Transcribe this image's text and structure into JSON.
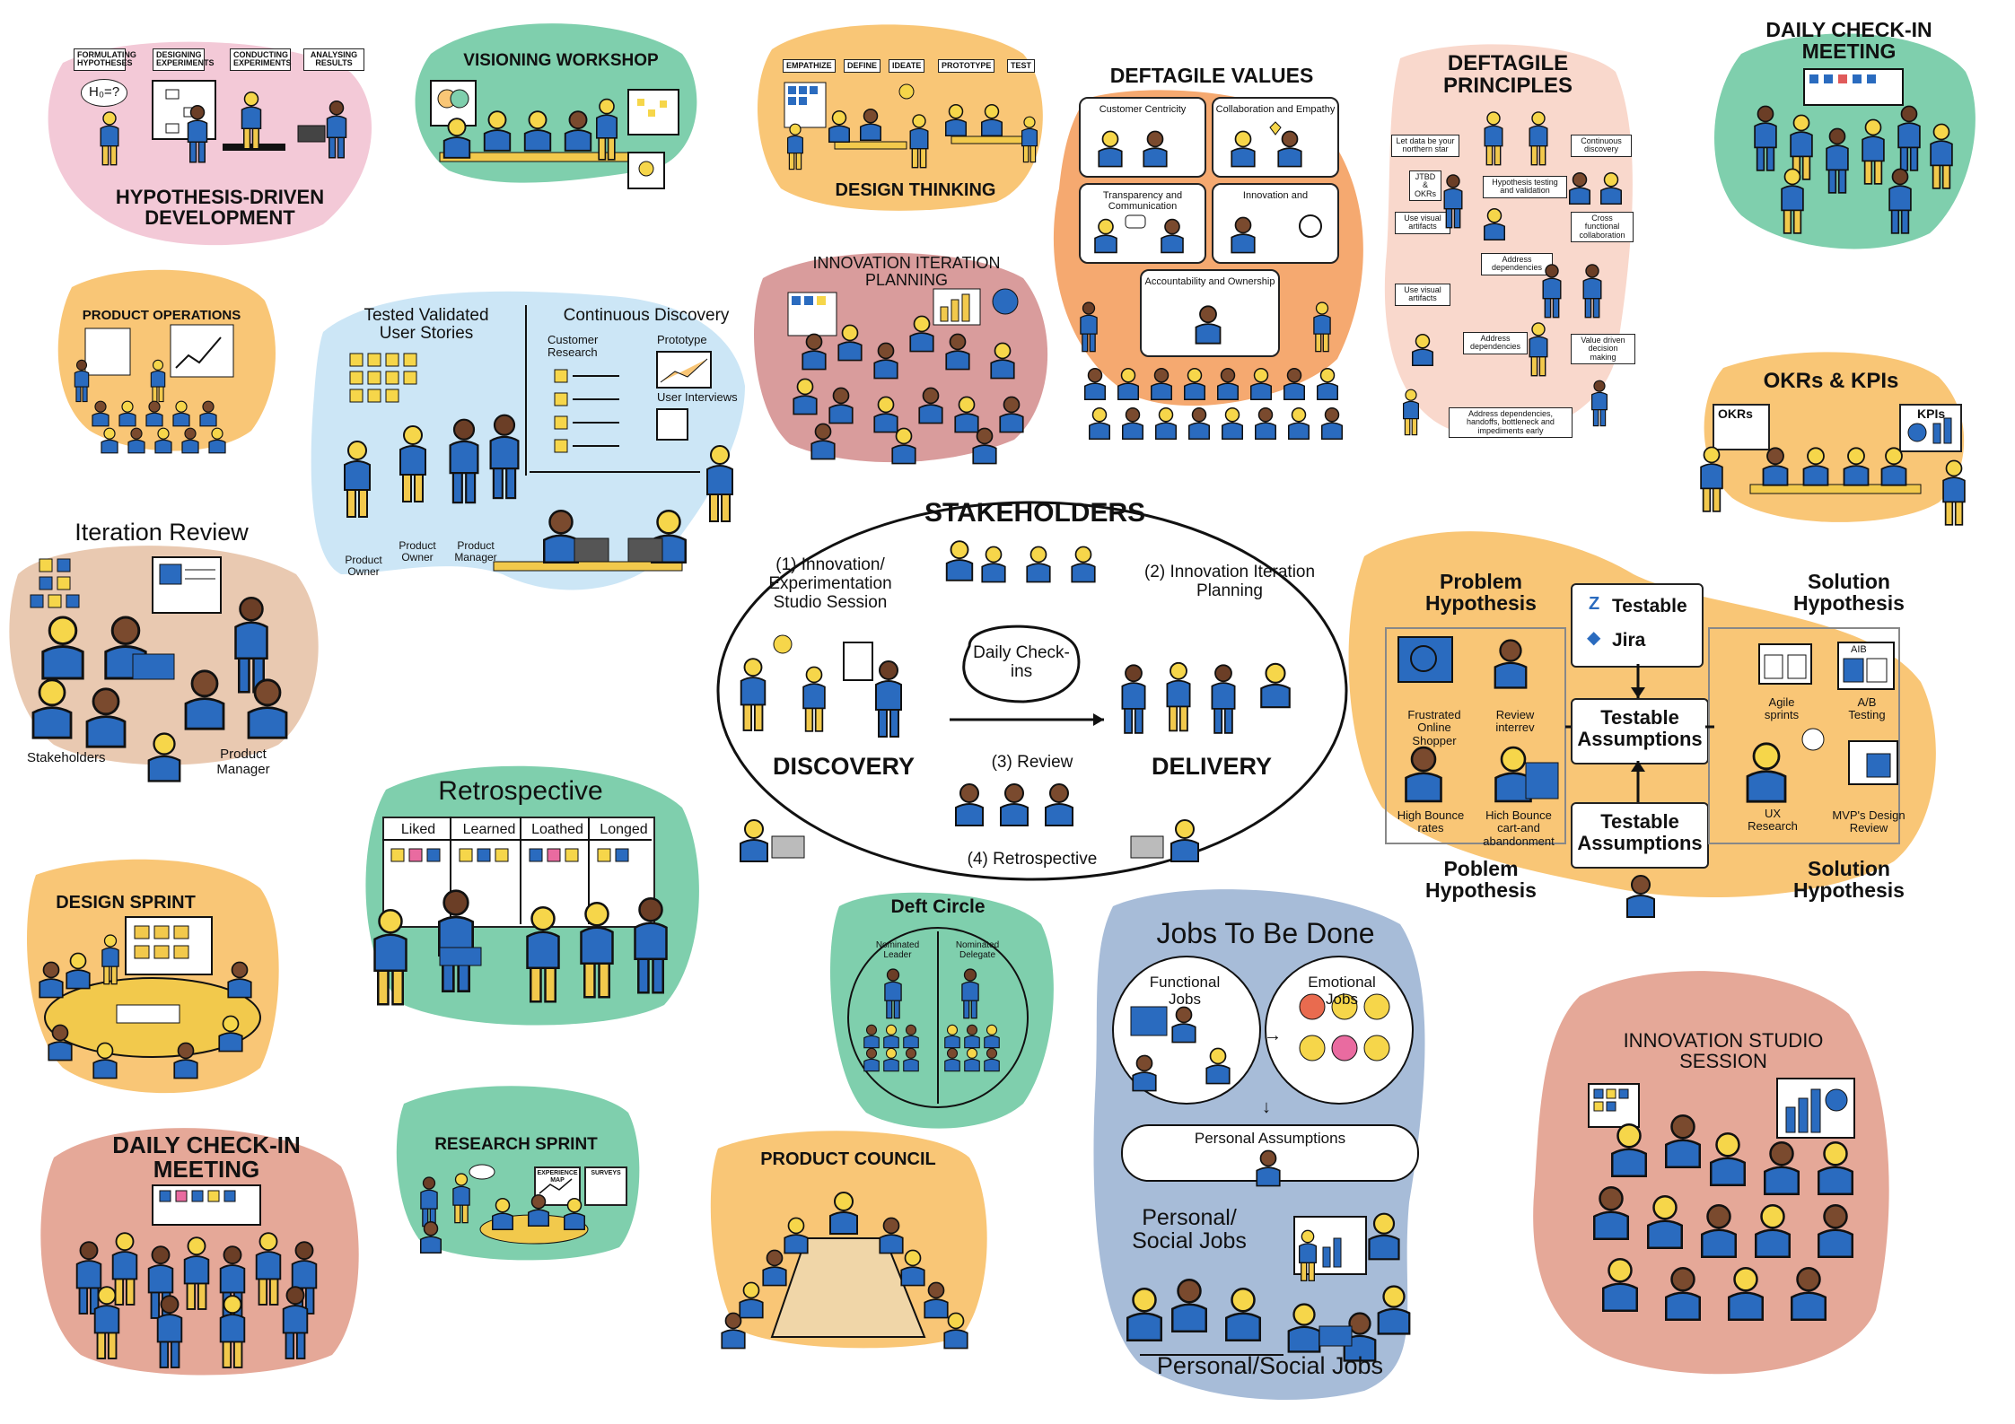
{
  "colors": {
    "pink": "#f3c9d7",
    "green": "#7fcfad",
    "orange": "#f9c676",
    "salmon": "#f5a970",
    "peach": "#f9d8cc",
    "lightblue": "#cce6f6",
    "rose": "#d99c9c",
    "tan": "#e9c9b1",
    "steel": "#a7bcd8",
    "shirt": "#2a6bbf",
    "skin": "#f6d64a",
    "pants": "#f2c94c",
    "ink": "#111111"
  },
  "hypothesis": {
    "title": "HYPOTHESIS-DRIVEN DEVELOPMENT",
    "steps": [
      "FORMULATING HYPOTHESES",
      "DESIGNING EXPERIMENTS",
      "CONDUCTING EXPERIMENTS",
      "ANALYSING RESULTS"
    ],
    "bubble": "H₀=?"
  },
  "visioning": {
    "title": "VISIONING WORKSHOP"
  },
  "design_thinking": {
    "title": "DESIGN THINKING",
    "stages": [
      "EMPATHIZE",
      "DEFINE",
      "IDEATE",
      "PROTOTYPE",
      "TEST"
    ]
  },
  "values": {
    "title": "DEFTAGILE VALUES",
    "items": [
      "Customer Centricity",
      "Collaboration and Empathy",
      "Transparency and Communication",
      "Innovation and",
      "Accountability and Ownership"
    ]
  },
  "principles": {
    "title": "DEFTAGILE PRINCIPLES",
    "items": [
      "Let data be your northern star",
      "JTBD & OKRs",
      "Hypothesis testing and validation",
      "Continuous discovery",
      "Use visual artifacts",
      "Cross functional collaboration",
      "Address dependencies",
      "Use visual artifacts",
      "Address dependencies",
      "Value driven decision making",
      "Address dependencies, handoffs, bottleneck and impediments early"
    ]
  },
  "daily_top": {
    "title": "DAILY CHECK-IN MEETING"
  },
  "product_ops": {
    "title": "PRODUCT OPERATIONS"
  },
  "validated": {
    "left_title": "Tested Validated User Stories",
    "right_title": "Continuous Discovery",
    "customer_research": "Customer Research",
    "prototype": "Prototype",
    "user_interviews": "User Interviews",
    "roles": [
      "Product Owner",
      "Product Owner",
      "Product Manager"
    ]
  },
  "iteration_planning": {
    "title": "INNOVATION ITERATION PLANNING"
  },
  "okrs": {
    "title": "OKRs & KPIs",
    "left": "OKRs",
    "right": "KPIs"
  },
  "iteration_review": {
    "title": "Iteration Review",
    "stakeholders": "Stakeholders",
    "product_manager": "Product Manager"
  },
  "center": {
    "title": "STAKEHOLDERS",
    "innovation": "(1) Innovation/ Experimentation Studio Session",
    "planning": "(2) Innovation Iteration Planning",
    "daily": "Daily Check-ins",
    "discovery": "DISCOVERY",
    "delivery": "DELIVERY",
    "review": "(3) Review",
    "retro": "(4) Retrospective"
  },
  "testable": {
    "problem_hypothesis": "Problem Hypothesis",
    "solution_hypothesis": "Solution Hypothesis",
    "testable": "Testable",
    "jira": "Jira",
    "assumptions": "Testable Assumptions",
    "frustrated": "Frustrated Online Shopper",
    "review_interview": "Review interrev",
    "high_bounce": "High Bounce rates",
    "hich_bounce": "Hich Bounce cart-and abandonment",
    "agile_sprints": "Agile sprints",
    "ab_testing": "A/B Testing",
    "ux_research": "UX Research",
    "mvp_review": "MVP's Design Review",
    "poblem_hypothesis": "Poblem Hypothesis",
    "ab_header": "AIB"
  },
  "design_sprint": {
    "title": "DESIGN SPRINT"
  },
  "retrospective": {
    "title": "Retrospective",
    "columns": [
      "Liked",
      "Learned",
      "Loathed",
      "Longed"
    ]
  },
  "deft_circle": {
    "title": "Deft Circle",
    "leader": "Nominated Leader",
    "delegate": "Nominated Delegate"
  },
  "jtbd": {
    "title": "Jobs To Be Done",
    "functional": "Functional Jobs",
    "emotional": "Emotional Jobs",
    "personal_assumptions": "Personal Assumptions",
    "social": "Personal/ Social Jobs",
    "footer": "Personal/Social Jobs"
  },
  "innovation_studio": {
    "title": "INNOVATION STUDIO SESSION"
  },
  "daily_bottom": {
    "title": "DAILY CHECK-IN MEETING"
  },
  "research_sprint": {
    "title": "RESEARCH SPRINT",
    "map": "EXPERIENCE MAP",
    "surveys": "SURVEYS"
  },
  "product_council": {
    "title": "PRODUCT COUNCIL"
  }
}
